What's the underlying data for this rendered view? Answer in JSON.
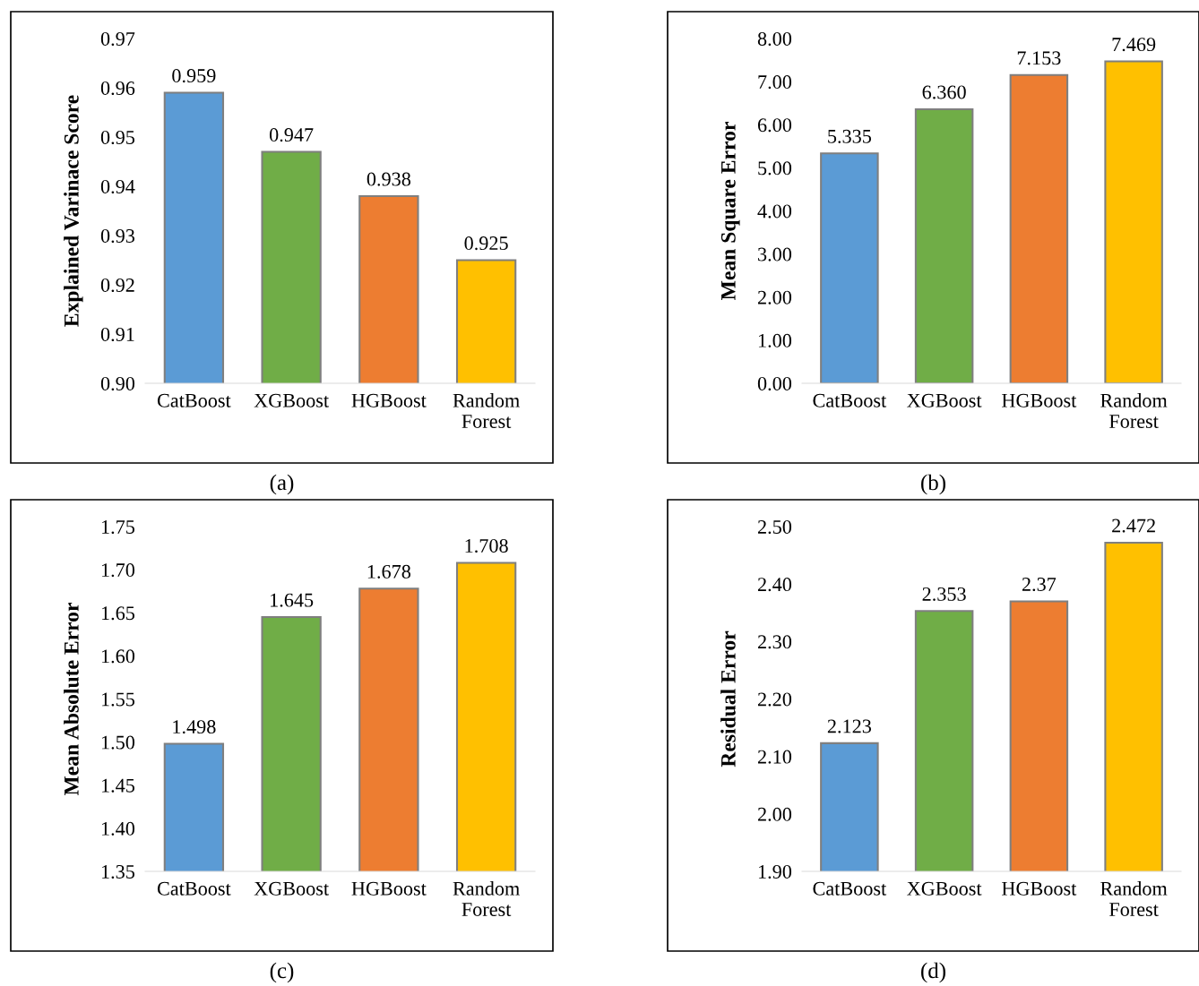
{
  "chart_data": [
    {
      "type": "bar",
      "ylabel": "Explained Varinace Score",
      "categories": [
        "CatBoost",
        "XGBoost",
        "HGBoost",
        "Random\nForest"
      ],
      "values": [
        0.959,
        0.947,
        0.938,
        0.925
      ],
      "colors": [
        "#5b9bd5",
        "#70ad47",
        "#ed7d31",
        "#ffc000"
      ],
      "ylim": [
        0.9,
        0.97
      ],
      "yticks": [
        {
          "value": 0.9,
          "label": "0.90"
        },
        0.91,
        0.92,
        0.93,
        0.94,
        0.95,
        0.96,
        0.97
      ],
      "data_labels": true,
      "grid": false,
      "annotations": [
        "(a)"
      ]
    },
    {
      "type": "bar",
      "ylabel": "Mean Square Error",
      "categories": [
        "CatBoost",
        "XGBoost",
        "HGBoost",
        "Random\nForest"
      ],
      "values": [
        5.335,
        6.36,
        7.153,
        7.469
      ],
      "value_labels": [
        "5.335",
        "6.360",
        "7.153",
        "7.469"
      ],
      "colors": [
        "#5b9bd5",
        "#70ad47",
        "#ed7d31",
        "#ffc000"
      ],
      "ylim": [
        0,
        8
      ],
      "yticks": [
        {
          "value": 0,
          "label": "0.00"
        },
        {
          "value": 1,
          "label": "1.00"
        },
        {
          "value": 2,
          "label": "2.00"
        },
        {
          "value": 3,
          "label": "3.00"
        },
        {
          "value": 4,
          "label": "4.00"
        },
        {
          "value": 5,
          "label": "5.00"
        },
        {
          "value": 6,
          "label": "6.00"
        },
        {
          "value": 7,
          "label": "7.00"
        },
        {
          "value": 8,
          "label": "8.00"
        }
      ],
      "grid": false,
      "annotations": [
        "(b)"
      ]
    },
    {
      "type": "bar",
      "ylabel": "Mean Absolute Error",
      "categories": [
        "CatBoost",
        "XGBoost",
        "HGBoost",
        "Random\nForest"
      ],
      "values": [
        1.498,
        1.645,
        1.678,
        1.708
      ],
      "colors": [
        "#5b9bd5",
        "#70ad47",
        "#ed7d31",
        "#ffc000"
      ],
      "ylim": [
        1.35,
        1.75
      ],
      "yticks": [
        1.35,
        {
          "value": 1.4,
          "label": "1.40"
        },
        1.45,
        {
          "value": 1.5,
          "label": "1.50"
        },
        1.55,
        {
          "value": 1.6,
          "label": "1.60"
        },
        1.65,
        {
          "value": 1.7,
          "label": "1.70"
        },
        1.75
      ],
      "data_labels": true,
      "grid": false,
      "annotations": [
        "(c)"
      ]
    },
    {
      "type": "bar",
      "ylabel": "Residual Error",
      "categories": [
        "CatBoost",
        "XGBoost",
        "HGBoost",
        "Random\nForest"
      ],
      "values": [
        2.123,
        2.353,
        2.37,
        2.472
      ],
      "colors": [
        "#5b9bd5",
        "#70ad47",
        "#ed7d31",
        "#ffc000"
      ],
      "ylim": [
        1.9,
        2.5
      ],
      "yticks": [
        {
          "value": 1.9,
          "label": "1.90"
        },
        {
          "value": 2.0,
          "label": "2.00"
        },
        {
          "value": 2.1,
          "label": "2.10"
        },
        {
          "value": 2.2,
          "label": "2.20"
        },
        {
          "value": 2.3,
          "label": "2.30"
        },
        {
          "value": 2.4,
          "label": "2.40"
        },
        {
          "value": 2.5,
          "label": "2.50"
        }
      ],
      "data_labels": true,
      "grid": false,
      "annotations": [
        "(d)"
      ]
    }
  ]
}
